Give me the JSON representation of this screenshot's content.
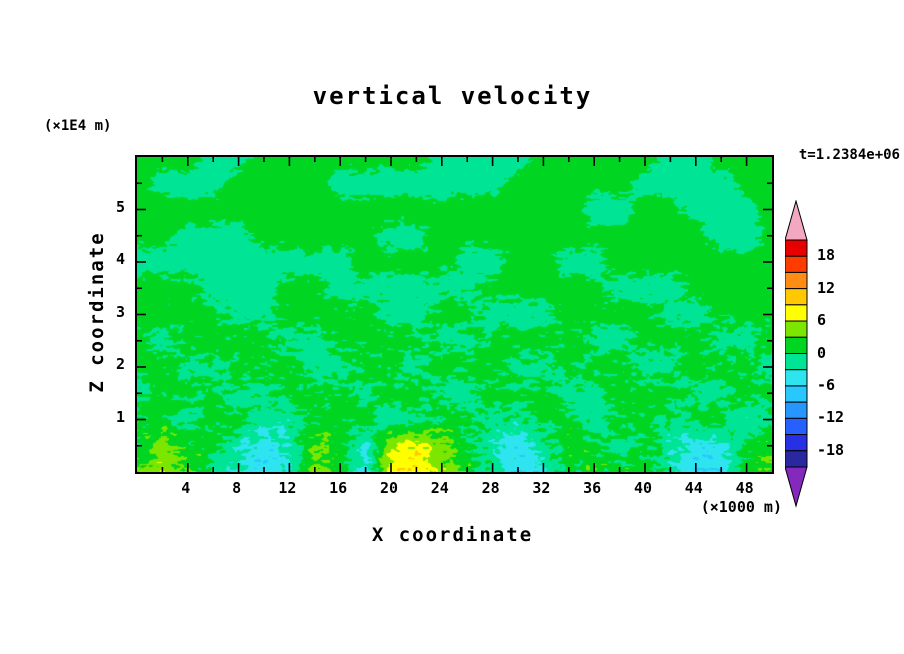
{
  "title": "vertical velocity",
  "annotations": {
    "time_label": "t=1.2384e+06",
    "z_axis_unit": "(×1E4 m)",
    "x_axis_unit": "(×1000 m)"
  },
  "axes": {
    "x": {
      "label": "X coordinate",
      "min": 0,
      "max": 50,
      "major_ticks": [
        4,
        8,
        12,
        16,
        20,
        24,
        28,
        32,
        36,
        40,
        44,
        48
      ],
      "minor_step": 2
    },
    "z": {
      "label": "Z coordinate",
      "min": 0,
      "max": 6,
      "major_ticks": [
        1,
        2,
        3,
        4,
        5
      ],
      "minor_step": 0.5
    }
  },
  "chart_data": {
    "type": "heatmap",
    "title": "vertical velocity",
    "xlabel": "X coordinate",
    "ylabel": "Z coordinate",
    "x_unit": "(×1000 m)",
    "z_unit": "(×1E4 m)",
    "time": "t=1.2384e+06",
    "x_range": [
      0,
      50
    ],
    "z_range": [
      0,
      6
    ],
    "contour_interval": 3,
    "levels_labeled": [
      18,
      12,
      6,
      0,
      -6,
      -12,
      -18
    ],
    "colors_ascending": [
      "#2A28A0",
      "#2830E6",
      "#2860FF",
      "#2896FF",
      "#28C8FF",
      "#2EE4EE",
      "#00E496",
      "#00D622",
      "#7CE600",
      "#FFFF00",
      "#FFC800",
      "#FF8C14",
      "#FF3C00",
      "#E60000"
    ],
    "arrow_high_color": "#F2A8C0",
    "arrow_low_color": "#8428BE",
    "grid_x": [
      0,
      2,
      4,
      6,
      8,
      10,
      12,
      14,
      16,
      18,
      20,
      22,
      24,
      26,
      28,
      30,
      32,
      34,
      36,
      38,
      40,
      42,
      44,
      46,
      48,
      50
    ],
    "grid_z": [
      6,
      5.5,
      5,
      4.5,
      4,
      3.5,
      3,
      2.5,
      2,
      1.5,
      1,
      0.5,
      0
    ],
    "values": [
      [
        1,
        1,
        1,
        -1,
        -1,
        1,
        1,
        1,
        1,
        1,
        1,
        1,
        -1,
        -1,
        -1,
        -1,
        1,
        1,
        1,
        1,
        1,
        -1,
        -1,
        1,
        1,
        1
      ],
      [
        1,
        -1,
        -1,
        -1,
        1,
        1,
        1,
        1,
        -1,
        -1,
        -1,
        -1,
        -1,
        -1,
        -1,
        1,
        1,
        1,
        1,
        1,
        -1,
        -1,
        -1,
        -1,
        1,
        1
      ],
      [
        1,
        1,
        1,
        1,
        1,
        1,
        1,
        1,
        1,
        1,
        1,
        1,
        1,
        1,
        1,
        1,
        1,
        1,
        -1,
        -1,
        1,
        1,
        -1,
        -1,
        -1,
        1
      ],
      [
        1,
        1,
        -1,
        -1,
        -1,
        1,
        1,
        1,
        1,
        1,
        -1,
        -1,
        1,
        1,
        1,
        1,
        1,
        1,
        1,
        1,
        1,
        1,
        1,
        -1,
        -1,
        1
      ],
      [
        -1,
        -1,
        -1,
        -1,
        -1,
        -1,
        -1,
        -1,
        -1,
        1,
        1,
        1,
        1,
        -1,
        -1,
        1,
        1,
        -1,
        -1,
        1,
        1,
        1,
        1,
        1,
        1,
        1
      ],
      [
        1,
        1,
        1,
        -1,
        -1,
        -1,
        1,
        1,
        -1,
        -1,
        -1,
        -1,
        -1,
        -1,
        1,
        1,
        1,
        1,
        1,
        -1,
        -1,
        -1,
        1,
        1,
        1,
        1
      ],
      [
        1,
        1,
        1,
        1,
        -1,
        -1,
        1,
        1,
        1,
        1,
        -1,
        -1,
        1,
        1,
        -1,
        -1,
        -1,
        1,
        1,
        1,
        1,
        -1,
        -1,
        1,
        1,
        1
      ],
      [
        1,
        -1,
        1,
        1,
        1,
        1,
        -1,
        -1,
        1,
        1,
        1,
        1,
        -1,
        -1,
        1,
        1,
        1,
        1,
        -1,
        -1,
        1,
        1,
        1,
        -1,
        -1,
        1
      ],
      [
        1,
        1,
        -1,
        -1,
        1,
        1,
        1,
        -1,
        -1,
        1,
        1,
        -1,
        1,
        1,
        1,
        -1,
        -1,
        1,
        1,
        1,
        -1,
        -1,
        1,
        1,
        1,
        -1
      ],
      [
        -1,
        1,
        1,
        1,
        -1,
        -1,
        1,
        1,
        1,
        -1,
        1,
        1,
        -1,
        -1,
        1,
        1,
        1,
        -1,
        -1,
        1,
        1,
        1,
        -1,
        -1,
        1,
        1
      ],
      [
        1,
        1,
        -1,
        1,
        1,
        -2,
        -1,
        1,
        1,
        1,
        -2,
        -1,
        1,
        1,
        -1,
        -1,
        1,
        1,
        -2,
        1,
        1,
        -1,
        1,
        1,
        -2,
        -1
      ],
      [
        1,
        4,
        2,
        1,
        -2,
        -5,
        -3,
        3,
        2,
        -4,
        6,
        7,
        4,
        1,
        -2,
        -5,
        -2,
        2,
        1,
        -1,
        1,
        -2,
        -5,
        -4,
        1,
        2
      ],
      [
        2,
        6,
        3,
        -1,
        -3,
        -6,
        -2,
        5,
        1,
        -5,
        8,
        9,
        5,
        2,
        -1,
        -6,
        -3,
        1,
        2,
        1,
        2,
        -1,
        -6,
        -5,
        2,
        3
      ]
    ],
    "noise_amp_by_row": [
      0.5,
      0.5,
      0.55,
      0.6,
      0.7,
      0.9,
      1.1,
      1.3,
      1.5,
      1.7,
      1.9,
      2.1,
      2.1
    ]
  }
}
